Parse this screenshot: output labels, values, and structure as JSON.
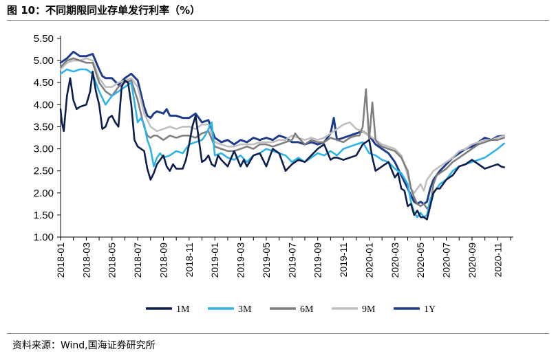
{
  "header": {
    "title": "图 10：不同期限同业存单发行利率（%）"
  },
  "footer": {
    "source": "资料来源：Wind,国海证券研究所"
  },
  "colors": {
    "1M": "#0d1f4f",
    "3M": "#2eb3e8",
    "6M": "#7f7f7f",
    "9M": "#bfbfbf",
    "1Y": "#1f3c8c"
  },
  "chart_data": {
    "type": "line",
    "title": "图 10：不同期限同业存单发行利率（%）",
    "xlabel": "",
    "ylabel": "",
    "ylim": [
      1.0,
      5.5
    ],
    "yticks": [
      "1.00",
      "1.50",
      "2.00",
      "2.50",
      "3.00",
      "3.50",
      "4.00",
      "4.50",
      "5.00",
      "5.50"
    ],
    "xlim": [
      0,
      35
    ],
    "xticks": [
      {
        "label": "2018-01",
        "x": 0
      },
      {
        "label": "2018-03",
        "x": 2
      },
      {
        "label": "2018-05",
        "x": 4
      },
      {
        "label": "2018-07",
        "x": 6
      },
      {
        "label": "2018-09",
        "x": 8
      },
      {
        "label": "2018-11",
        "x": 10
      },
      {
        "label": "2019-01",
        "x": 12
      },
      {
        "label": "2019-03",
        "x": 14
      },
      {
        "label": "2019-05",
        "x": 16
      },
      {
        "label": "2019-07",
        "x": 18
      },
      {
        "label": "2019-09",
        "x": 20
      },
      {
        "label": "2019-11",
        "x": 22
      },
      {
        "label": "2020-01",
        "x": 24
      },
      {
        "label": "2020-03",
        "x": 26
      },
      {
        "label": "2020-05",
        "x": 28
      },
      {
        "label": "2020-07",
        "x": 30
      },
      {
        "label": "2020-09",
        "x": 32
      },
      {
        "label": "2020-11",
        "x": 34
      }
    ],
    "grid": false,
    "legend": "bottom",
    "series": [
      {
        "name": "1M",
        "color": "#0d1f4f",
        "width": 2.6,
        "x": [
          0,
          0.1,
          0.25,
          0.5,
          0.75,
          1,
          1.25,
          1.5,
          2,
          2.3,
          2.5,
          2.75,
          3,
          3.25,
          3.5,
          3.75,
          4,
          4.25,
          4.5,
          4.75,
          5,
          5.25,
          5.5,
          5.75,
          6,
          6.25,
          6.5,
          6.75,
          7,
          7.25,
          7.5,
          7.75,
          8,
          8.25,
          8.5,
          8.75,
          9,
          9.5,
          9.75,
          10,
          10.25,
          10.5,
          11,
          11.25,
          11.5,
          11.75,
          12,
          12.25,
          12.5,
          13,
          13.5,
          14,
          14.25,
          14.5,
          15,
          15.5,
          16,
          16.5,
          17,
          17.5,
          18,
          18.5,
          19,
          19.5,
          20,
          20.5,
          21,
          21.25,
          21.5,
          22,
          22.5,
          23,
          23.5,
          24,
          24.25,
          24.5,
          25,
          25.5,
          26,
          26.25,
          26.5,
          26.75,
          27,
          27.25,
          27.5,
          27.75,
          28,
          28.25,
          28.5,
          28.75,
          29,
          29.25,
          29.5,
          29.75,
          30,
          30.5,
          31,
          31.5,
          32,
          32.5,
          33,
          33.5,
          34,
          34.25,
          34.5
        ],
        "y": [
          3.9,
          3.6,
          3.4,
          4.2,
          4.6,
          4.1,
          3.9,
          3.95,
          4.0,
          4.3,
          4.75,
          4.3,
          4.0,
          3.45,
          3.5,
          3.7,
          3.75,
          3.6,
          3.5,
          4.4,
          4.55,
          4.5,
          4.0,
          3.2,
          3.05,
          3.0,
          2.95,
          2.55,
          2.3,
          2.45,
          2.65,
          2.75,
          2.85,
          2.6,
          2.5,
          2.65,
          2.55,
          2.55,
          2.75,
          3.1,
          3.5,
          3.75,
          2.7,
          2.75,
          2.85,
          2.65,
          2.6,
          2.85,
          2.75,
          2.6,
          2.95,
          2.6,
          2.75,
          2.6,
          2.85,
          2.9,
          2.6,
          3.0,
          2.9,
          2.5,
          2.65,
          2.75,
          2.7,
          2.85,
          3.0,
          3.1,
          2.75,
          2.8,
          2.8,
          2.75,
          2.8,
          2.85,
          3.1,
          3.2,
          2.8,
          2.5,
          2.6,
          2.7,
          2.35,
          2.45,
          2.1,
          2.05,
          1.7,
          1.75,
          1.5,
          1.6,
          1.45,
          1.45,
          1.4,
          1.7,
          2.0,
          2.1,
          2.1,
          2.2,
          2.3,
          2.4,
          2.6,
          2.65,
          2.75,
          2.65,
          2.55,
          2.6,
          2.65,
          2.6,
          2.58
        ]
      },
      {
        "name": "3M",
        "color": "#2eb3e8",
        "width": 2.6,
        "x": [
          0,
          0.5,
          1,
          1.5,
          2,
          2.5,
          3,
          3.5,
          4,
          4.5,
          5,
          5.5,
          6,
          6.25,
          6.5,
          6.75,
          7,
          7.25,
          7.5,
          7.75,
          8,
          8.5,
          9,
          9.5,
          10,
          10.5,
          11,
          11.25,
          11.5,
          11.75,
          12,
          12.5,
          13,
          13.5,
          14,
          14.5,
          15,
          15.5,
          16,
          16.5,
          17,
          17.5,
          18,
          18.5,
          19,
          19.5,
          20,
          20.5,
          21,
          21.5,
          22,
          22.5,
          23,
          23.5,
          24,
          24.5,
          25,
          25.5,
          26,
          26.5,
          27,
          27.25,
          27.5,
          27.75,
          28,
          28.25,
          28.5,
          28.75,
          29,
          29.25,
          29.5,
          30,
          30.5,
          31,
          31.5,
          32,
          32.5,
          33,
          33.5,
          34,
          34.5
        ],
        "y": [
          4.7,
          4.8,
          4.75,
          4.8,
          4.8,
          4.7,
          4.3,
          4.0,
          4.2,
          4.3,
          4.4,
          4.5,
          3.6,
          3.7,
          3.55,
          3.2,
          3.0,
          2.6,
          2.8,
          2.9,
          2.8,
          2.85,
          2.95,
          2.9,
          3.1,
          3.15,
          3.2,
          3.3,
          3.45,
          3.6,
          2.85,
          2.9,
          2.8,
          2.75,
          2.85,
          2.7,
          2.85,
          2.9,
          3.0,
          2.95,
          2.9,
          2.85,
          2.7,
          2.8,
          2.7,
          2.8,
          2.9,
          2.85,
          2.95,
          2.85,
          3.0,
          3.05,
          3.1,
          3.15,
          2.9,
          2.85,
          2.75,
          2.7,
          2.55,
          2.45,
          2.2,
          1.8,
          1.55,
          1.45,
          1.55,
          1.45,
          1.5,
          1.85,
          2.0,
          2.1,
          2.2,
          2.3,
          2.5,
          2.6,
          2.65,
          2.7,
          2.75,
          2.8,
          2.9,
          3.0,
          3.12
        ]
      },
      {
        "name": "6M",
        "color": "#7f7f7f",
        "width": 2.6,
        "x": [
          0,
          0.5,
          1,
          1.5,
          2,
          2.5,
          3,
          3.5,
          4,
          4.5,
          5,
          5.5,
          6,
          6.25,
          6.5,
          6.75,
          7,
          7.25,
          7.5,
          7.75,
          8,
          8.5,
          9,
          9.5,
          10,
          10.5,
          11,
          11.5,
          12,
          12.5,
          13,
          13.5,
          14,
          14.5,
          15,
          15.5,
          16,
          16.5,
          17,
          17.5,
          18,
          18.25,
          18.5,
          19,
          19.5,
          20,
          20.5,
          21,
          21.5,
          22,
          22.5,
          23,
          23.25,
          23.5,
          23.75,
          24,
          24.25,
          24.5,
          24.75,
          25,
          25.5,
          26,
          26.5,
          27,
          27.25,
          27.5,
          27.75,
          28,
          28.25,
          28.5,
          28.75,
          29,
          29.25,
          29.5,
          30,
          30.5,
          31,
          31.5,
          32,
          32.5,
          33,
          33.5,
          34,
          34.5
        ],
        "y": [
          4.85,
          5.0,
          5.05,
          5.0,
          4.95,
          4.95,
          4.5,
          4.3,
          4.2,
          4.4,
          4.5,
          4.55,
          4.1,
          3.8,
          3.5,
          3.3,
          3.25,
          3.3,
          3.3,
          3.25,
          3.2,
          3.3,
          3.25,
          3.3,
          3.3,
          3.25,
          3.35,
          3.4,
          3.05,
          3.0,
          2.95,
          2.95,
          3.0,
          3.05,
          3.0,
          3.1,
          3.1,
          3.05,
          3.1,
          3.15,
          3.2,
          3.35,
          3.25,
          3.1,
          3.2,
          3.15,
          3.15,
          3.25,
          3.2,
          3.15,
          3.25,
          3.3,
          3.3,
          3.5,
          4.35,
          3.2,
          4.05,
          3.2,
          3.1,
          3.05,
          3.0,
          2.95,
          2.8,
          2.5,
          2.1,
          1.9,
          1.75,
          1.7,
          1.75,
          1.65,
          1.7,
          2.2,
          2.4,
          2.45,
          2.55,
          2.7,
          2.8,
          2.9,
          3.0,
          3.1,
          3.15,
          3.2,
          3.2,
          3.25
        ]
      },
      {
        "name": "9M",
        "color": "#bfbfbf",
        "width": 2.6,
        "x": [
          0,
          0.5,
          1,
          1.5,
          2,
          2.5,
          3,
          3.5,
          4,
          4.5,
          5,
          5.5,
          6,
          6.5,
          7,
          7.5,
          8,
          8.5,
          9,
          9.5,
          10,
          10.5,
          11,
          11.5,
          12,
          12.5,
          13,
          13.5,
          14,
          14.5,
          15,
          15.5,
          16,
          16.5,
          17,
          17.5,
          18,
          18.5,
          19,
          19.5,
          20,
          20.5,
          21,
          21.5,
          22,
          22.5,
          23,
          23.5,
          24,
          24.5,
          25,
          25.5,
          26,
          26.5,
          27,
          27.25,
          27.5,
          27.75,
          28,
          28.25,
          28.5,
          28.75,
          29,
          29.5,
          30,
          30.5,
          31,
          31.5,
          32,
          32.5,
          33,
          33.5,
          34,
          34.5
        ],
        "y": [
          4.8,
          4.95,
          5.0,
          5.0,
          5.05,
          5.0,
          4.6,
          4.4,
          4.4,
          4.5,
          4.55,
          4.6,
          4.4,
          3.8,
          3.5,
          3.4,
          3.45,
          3.5,
          3.45,
          3.5,
          3.5,
          3.45,
          3.55,
          3.55,
          3.15,
          3.1,
          3.05,
          3.05,
          3.1,
          3.1,
          3.1,
          3.15,
          3.15,
          3.15,
          3.2,
          3.2,
          3.3,
          3.25,
          3.2,
          3.25,
          3.2,
          3.25,
          3.35,
          3.45,
          3.55,
          3.6,
          3.45,
          3.4,
          3.3,
          3.2,
          3.1,
          3.05,
          3.0,
          2.85,
          2.4,
          2.1,
          2.0,
          2.1,
          2.2,
          2.05,
          2.3,
          2.4,
          2.5,
          2.6,
          2.7,
          2.8,
          2.95,
          3.0,
          3.1,
          3.15,
          3.2,
          3.2,
          3.25,
          3.3
        ]
      },
      {
        "name": "1Y",
        "color": "#1f3c8c",
        "width": 3.0,
        "x": [
          0,
          0.5,
          1,
          1.5,
          2,
          2.5,
          3,
          3.25,
          3.5,
          4,
          4.5,
          5,
          5.5,
          6,
          6.5,
          6.75,
          7,
          7.25,
          7.5,
          8,
          8.25,
          8.5,
          9,
          9.5,
          10,
          10.5,
          11,
          11.5,
          12,
          12.5,
          13,
          13.5,
          14,
          14.5,
          15,
          15.5,
          16,
          16.5,
          17,
          17.5,
          18,
          18.5,
          19,
          19.5,
          20,
          20.5,
          21,
          21.25,
          21.5,
          22,
          22.5,
          23,
          23.5,
          24,
          24.5,
          25,
          25.5,
          26,
          26.5,
          27,
          27.25,
          27.5,
          27.75,
          28,
          28.25,
          28.5,
          28.75,
          29,
          29.5,
          30,
          30.5,
          31,
          31.5,
          32,
          32.5,
          33,
          33.5,
          34,
          34.5
        ],
        "y": [
          4.95,
          5.05,
          5.2,
          5.1,
          5.1,
          5.15,
          4.8,
          4.65,
          4.6,
          4.6,
          4.45,
          4.6,
          4.7,
          4.55,
          3.95,
          3.75,
          3.7,
          3.8,
          3.85,
          3.8,
          3.9,
          3.75,
          3.75,
          3.7,
          3.7,
          3.8,
          3.6,
          3.65,
          3.25,
          3.15,
          3.2,
          3.1,
          3.2,
          3.15,
          3.25,
          3.2,
          3.25,
          3.2,
          3.3,
          3.25,
          3.15,
          3.15,
          3.1,
          3.15,
          3.1,
          3.15,
          3.35,
          3.7,
          3.2,
          3.25,
          3.3,
          3.35,
          3.4,
          3.3,
          3.1,
          3.0,
          2.9,
          2.7,
          2.4,
          2.1,
          1.95,
          1.8,
          1.75,
          1.8,
          1.75,
          1.8,
          2.1,
          2.3,
          2.5,
          2.65,
          2.8,
          2.9,
          3.0,
          3.05,
          3.15,
          3.25,
          3.2,
          3.28,
          3.3
        ]
      }
    ]
  }
}
